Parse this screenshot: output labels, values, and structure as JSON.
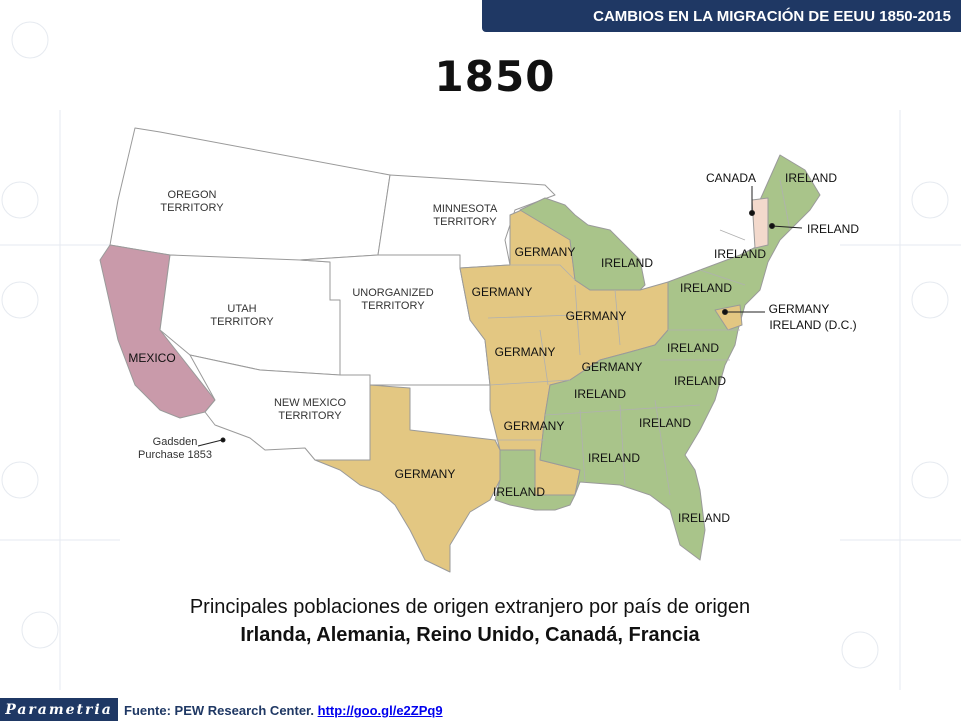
{
  "header": {
    "title": "CAMBIOS EN LA MIGRACIÓN DE EEUU 1850-2015"
  },
  "map": {
    "year": "1850",
    "colors": {
      "germany": "#e3c782",
      "ireland": "#a9c48a",
      "mexico": "#c99aaa",
      "canada": "#f3d9cc",
      "none": "#ffffff",
      "border": "#9a9a9a"
    },
    "territories": {
      "oregon": "OREGON\nTERRITORY",
      "minnesota": "MINNESOTA\nTERRITORY",
      "utah": "UTAH\nTERRITORY",
      "unorganized": "UNORGANIZED\nTERRITORY",
      "new_mexico": "NEW MEXICO\nTERRITORY"
    },
    "labels": {
      "mexico": "MEXICO",
      "canada": "CANADA",
      "germany": "GERMANY",
      "ireland": "IRELAND",
      "ireland_dc": "IRELAND (D.C.)",
      "gadsden": "Gadsden\nPurchase 1853"
    }
  },
  "caption": {
    "line1": "Principales poblaciones de origen extranjero por país de origen",
    "line2": "Irlanda, Alemania, Reino Unido, Canadá, Francia"
  },
  "footer": {
    "logo": "Parametria",
    "source_label": "Fuente: PEW Research Center. ",
    "source_link": "http://goo.gl/e2ZPq9"
  }
}
